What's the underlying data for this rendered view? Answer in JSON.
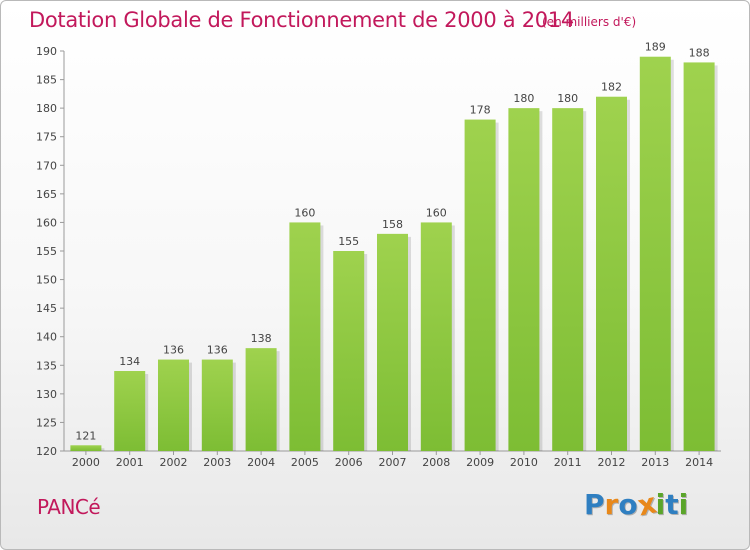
{
  "title": "Dotation Globale de Fonctionnement de 2000 à 2014",
  "subtitle": "(en milliers d'€)",
  "commune": "PANCé",
  "logo": {
    "letters": [
      "P",
      "r",
      "o",
      "x",
      "i",
      "t",
      "i"
    ],
    "colors": [
      "#2f7fc1",
      "#e8881a",
      "#2f7fc1",
      "#e8881a",
      "#5aa52a",
      "#2f7fc1",
      "#5aa52a"
    ]
  },
  "chart_data": {
    "type": "bar",
    "categories": [
      "2000",
      "2001",
      "2002",
      "2003",
      "2004",
      "2005",
      "2006",
      "2007",
      "2008",
      "2009",
      "2010",
      "2011",
      "2012",
      "2013",
      "2014"
    ],
    "values": [
      121,
      134,
      136,
      136,
      138,
      160,
      155,
      158,
      160,
      178,
      180,
      180,
      182,
      189,
      188
    ],
    "ylim": [
      120,
      190
    ],
    "yticks": [
      120,
      125,
      130,
      135,
      140,
      145,
      150,
      155,
      160,
      165,
      170,
      175,
      180,
      185,
      190
    ],
    "grid": false,
    "bar_color": "#7dbd34",
    "bar_color_light": "#9fd24e"
  }
}
